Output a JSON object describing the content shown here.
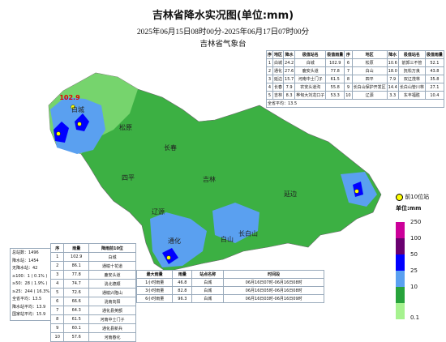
{
  "header": {
    "title": "吉林省降水实况图(单位:mm)",
    "period": "2025年06月15日08时00分-2025年06月17日07时00分",
    "issuer": "吉林省气象台"
  },
  "map_labels": [
    {
      "text": "102.9"
    },
    {
      "text": "白城"
    },
    {
      "text": "松原"
    },
    {
      "text": "长春"
    },
    {
      "text": "四平"
    },
    {
      "text": "吉林"
    },
    {
      "text": "辽源"
    },
    {
      "text": "延边"
    },
    {
      "text": "通化"
    },
    {
      "text": "白山"
    },
    {
      "text": "长白山"
    }
  ],
  "summary_table": {
    "header": [
      "序",
      "地区",
      "降水",
      "极值站名",
      "极值雨量",
      "序",
      "地区",
      "降水",
      "极值站名",
      "极值雨量"
    ],
    "rows": [
      [
        "1",
        "白城",
        "24.2",
        "白城",
        "102.9",
        "6",
        "松原",
        "10.6",
        "前郭三不管",
        "52.1"
      ],
      [
        "2",
        "通化",
        "27.6",
        "鹿安头道",
        "77.8",
        "7",
        "白山",
        "18.0",
        "抚松万良",
        "43.8"
      ],
      [
        "3",
        "延边",
        "15.7",
        "河南中士门子",
        "61.5",
        "8",
        "四平",
        "7.9",
        "双辽茂林",
        "35.8"
      ],
      [
        "4",
        "长春",
        "7.9",
        "农安头道沟",
        "55.8",
        "9",
        "长白山保护开发区",
        "14.4",
        "长白山管川林",
        "27.1"
      ],
      [
        "5",
        "吉林",
        "8.3",
        "桦甸大刘龙口子",
        "53.3",
        "10",
        "辽源",
        "3.3",
        "东丰福胜",
        "10.4"
      ]
    ],
    "footer": "全省平均：13.5"
  },
  "stats": [
    "总站数：1496",
    "降水站：1454",
    "无降水站：42",
    "≥100：1 ( 0.1% )",
    "≥50：28 ( 1.9% )",
    "≥25：244 ( 16.3% )",
    "全省平均：13.5",
    "降水站平均：13.9",
    "国家站平均：15.9"
  ],
  "top10_table": {
    "header": [
      "序",
      "雨量",
      "降雨前10位"
    ],
    "rows": [
      [
        "1",
        "102.9",
        "白城"
      ],
      [
        "2",
        "86.1",
        "通榆十花道"
      ],
      [
        "3",
        "77.8",
        "鹿安头道"
      ],
      [
        "4",
        "74.7",
        "洮北德顺"
      ],
      [
        "5",
        "72.6",
        "通榆兴隆山"
      ],
      [
        "6",
        "66.6",
        "洮南向阳"
      ],
      [
        "7",
        "64.3",
        "通化县英额"
      ],
      [
        "8",
        "61.5",
        "河南中士门子"
      ],
      [
        "9",
        "60.1",
        "通化县新兵"
      ],
      [
        "10",
        "57.6",
        "河南春化"
      ]
    ]
  },
  "max_rain_table": {
    "header": [
      "最大雨量",
      "雨量",
      "站点名称",
      "时间段"
    ],
    "rows": [
      [
        "1小时雨量",
        "46.8",
        "白城",
        "06月16日07时-06月16日08时"
      ],
      [
        "3小时雨量",
        "82.8",
        "白城",
        "06月16日05时-06月16日08时"
      ],
      [
        "6小时雨量",
        "96.3",
        "白城",
        "06月16日03时-06月16日09时"
      ]
    ]
  },
  "legend": {
    "station": "前10位站",
    "unit": "单位:mm",
    "levels": [
      "250",
      "100",
      "50",
      "25",
      "10",
      "0.1"
    ]
  }
}
